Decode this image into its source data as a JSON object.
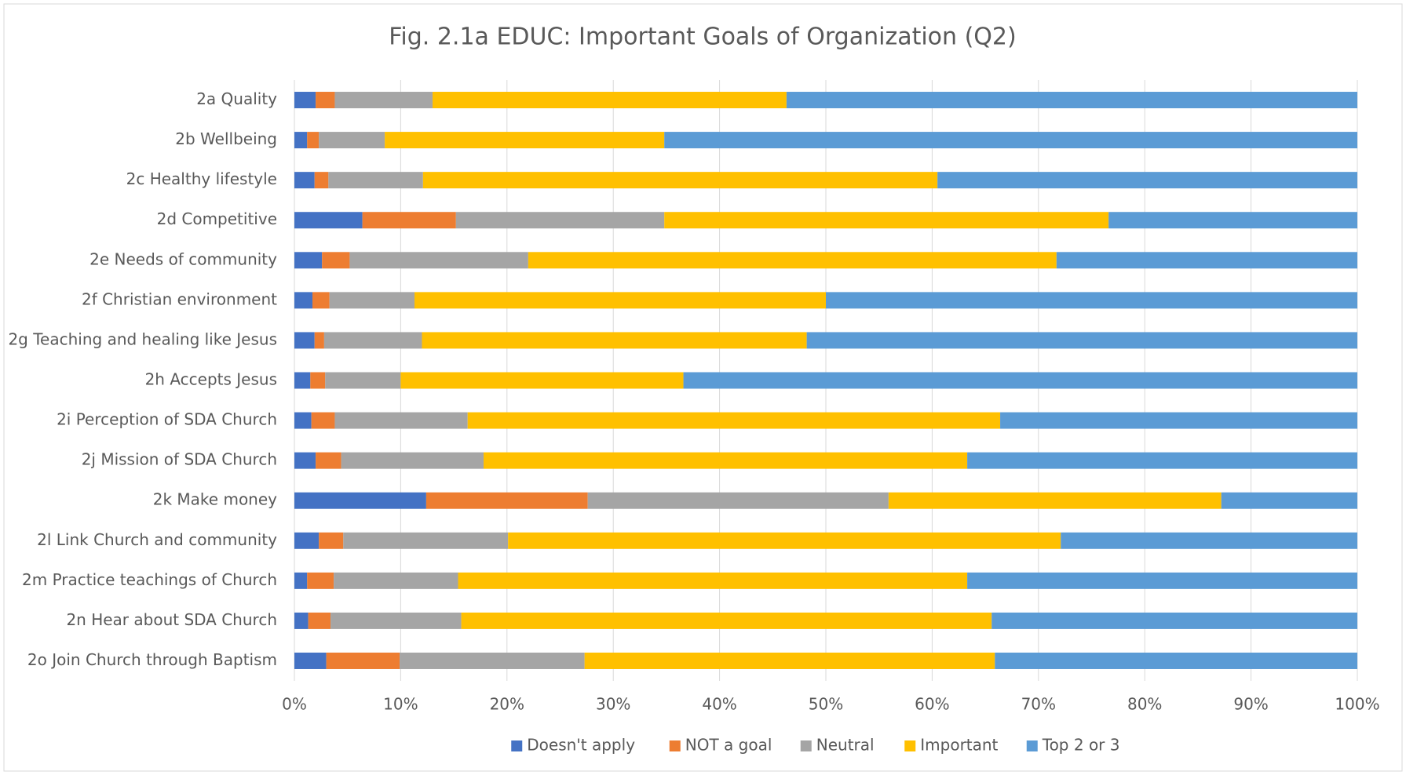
{
  "chart_data": {
    "type": "stacked_bar_horizontal",
    "title": "Fig. 2.1a EDUC: Important Goals of Organization (Q2)",
    "categories": [
      "2a Quality",
      "2b Wellbeing",
      "2c Healthy lifestyle",
      "2d Competitive",
      "2e Needs of community",
      "2f Christian environment",
      "2g Teaching and healing like Jesus",
      "2h Accepts Jesus",
      "2i Perception of SDA Church",
      "2j Mission of SDA Church",
      "2k Make money",
      "2l Link Church and community",
      "2m Practice teachings of Church",
      "2n Hear about SDA Church",
      "2o Join Church through Baptism"
    ],
    "series": [
      {
        "name": "Doesn't apply",
        "color": "#4472c4",
        "values": [
          2.0,
          1.2,
          1.9,
          6.4,
          2.6,
          1.7,
          1.9,
          1.5,
          1.6,
          2.0,
          12.4,
          2.3,
          1.2,
          1.3,
          3.0
        ]
      },
      {
        "name": "NOT a goal",
        "color": "#ed7d31",
        "values": [
          1.8,
          1.1,
          1.3,
          8.8,
          2.6,
          1.6,
          0.9,
          1.4,
          2.2,
          2.4,
          15.2,
          2.3,
          2.5,
          2.1,
          6.9
        ]
      },
      {
        "name": "Neutral",
        "color": "#a5a5a5",
        "values": [
          9.2,
          6.2,
          8.9,
          19.6,
          16.8,
          8.0,
          9.2,
          7.1,
          12.5,
          13.4,
          28.3,
          15.5,
          11.7,
          12.3,
          17.4
        ]
      },
      {
        "name": "Important",
        "color": "#ffc000",
        "values": [
          33.3,
          26.3,
          48.4,
          41.8,
          49.7,
          38.7,
          36.2,
          26.6,
          50.1,
          45.5,
          31.3,
          52.0,
          47.9,
          49.9,
          38.6
        ]
      },
      {
        "name": "Top 2 or 3",
        "color": "#5b9bd5",
        "values": [
          53.7,
          65.2,
          39.5,
          23.4,
          28.3,
          50.0,
          51.8,
          63.4,
          33.6,
          36.7,
          12.8,
          27.9,
          36.7,
          34.4,
          34.1
        ]
      }
    ],
    "xlim": [
      0,
      100
    ],
    "xticks": [
      {
        "value": 0,
        "label": "0%"
      },
      {
        "value": 10,
        "label": "10%"
      },
      {
        "value": 20,
        "label": "20%"
      },
      {
        "value": 30,
        "label": "30%"
      },
      {
        "value": 40,
        "label": "40%"
      },
      {
        "value": 50,
        "label": "50%"
      },
      {
        "value": 60,
        "label": "60%"
      },
      {
        "value": 70,
        "label": "70%"
      },
      {
        "value": 80,
        "label": "80%"
      },
      {
        "value": 90,
        "label": "90%"
      },
      {
        "value": 100,
        "label": "100%"
      }
    ],
    "grid": true,
    "legend": "bottom"
  }
}
